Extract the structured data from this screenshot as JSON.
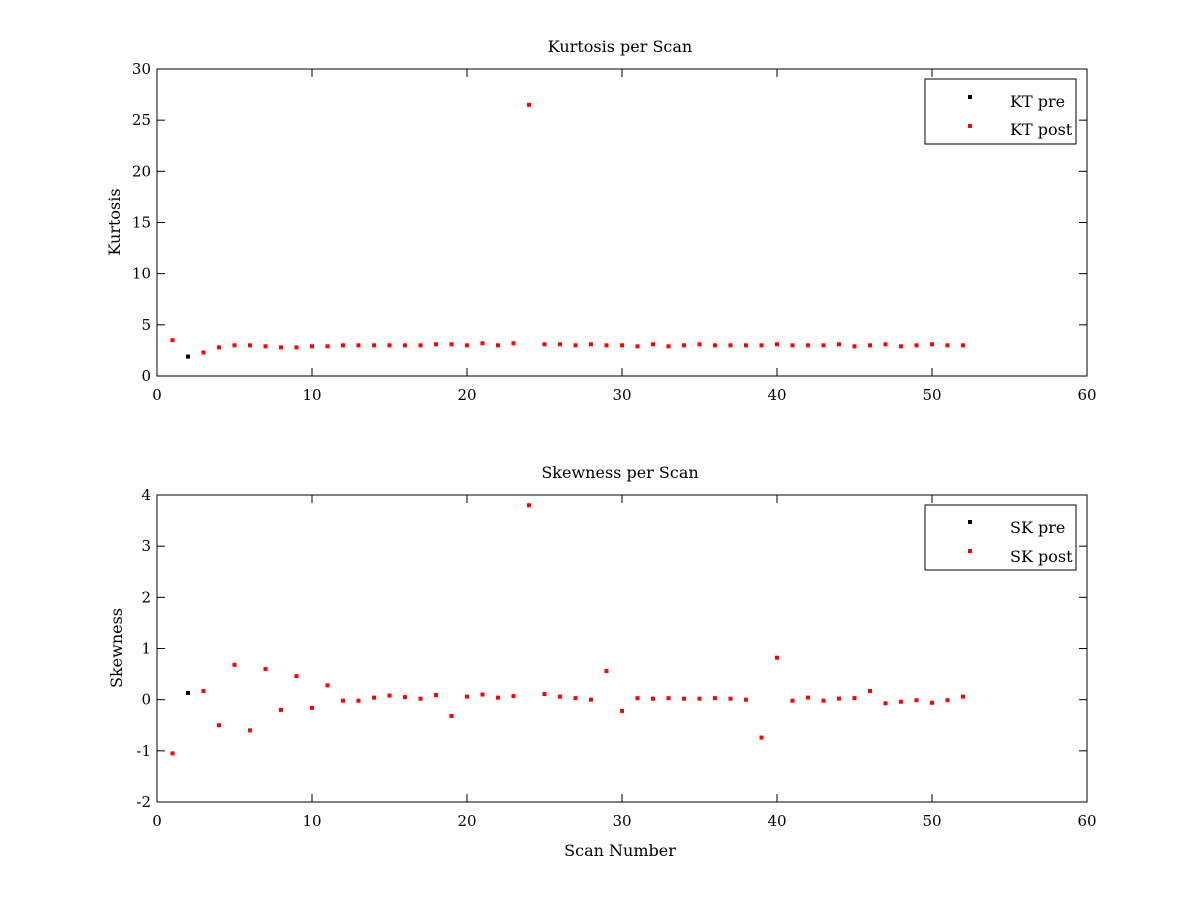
{
  "colors": {
    "pre": "#000000",
    "post": "#ff0000",
    "axis": "#000000",
    "background": "#ffffff"
  },
  "chart_data": [
    {
      "type": "scatter",
      "title": "Kurtosis per Scan",
      "xlabel": "",
      "ylabel": "Kurtosis",
      "xlim": [
        0,
        60
      ],
      "ylim": [
        0,
        30
      ],
      "xticks": [
        0,
        10,
        20,
        30,
        40,
        50,
        60
      ],
      "yticks": [
        0,
        5,
        10,
        15,
        20,
        25,
        30
      ],
      "legend_position": "top-right",
      "series": [
        {
          "name": "KT pre",
          "color": "#000000",
          "x": [
            2
          ],
          "y": [
            1.9
          ]
        },
        {
          "name": "KT post",
          "color": "#ff0000",
          "x": [
            1,
            3,
            4,
            5,
            6,
            7,
            8,
            9,
            10,
            11,
            12,
            13,
            14,
            15,
            16,
            17,
            18,
            19,
            20,
            21,
            22,
            23,
            24,
            25,
            26,
            27,
            28,
            29,
            30,
            31,
            32,
            33,
            34,
            35,
            36,
            37,
            38,
            39,
            40,
            41,
            42,
            43,
            44,
            45,
            46,
            47,
            48,
            49,
            50,
            51,
            52
          ],
          "y": [
            3.5,
            2.3,
            2.8,
            3.0,
            3.0,
            2.9,
            2.8,
            2.8,
            2.9,
            2.9,
            3.0,
            3.0,
            3.0,
            3.0,
            3.0,
            3.0,
            3.1,
            3.1,
            3.0,
            3.2,
            3.0,
            3.2,
            26.5,
            3.1,
            3.1,
            3.0,
            3.1,
            3.0,
            3.0,
            2.9,
            3.1,
            2.9,
            3.0,
            3.1,
            3.0,
            3.0,
            3.0,
            3.0,
            3.1,
            3.0,
            3.0,
            3.0,
            3.1,
            2.9,
            3.0,
            3.1,
            2.9,
            3.0,
            3.1,
            3.0,
            3.0
          ]
        }
      ]
    },
    {
      "type": "scatter",
      "title": "Skewness per Scan",
      "xlabel": "Scan Number",
      "ylabel": "Skewness",
      "xlim": [
        0,
        60
      ],
      "ylim": [
        -2,
        4
      ],
      "xticks": [
        0,
        10,
        20,
        30,
        40,
        50,
        60
      ],
      "yticks": [
        -2,
        -1,
        0,
        1,
        2,
        3,
        4
      ],
      "legend_position": "top-right",
      "series": [
        {
          "name": "SK pre",
          "color": "#000000",
          "x": [
            2
          ],
          "y": [
            0.13
          ]
        },
        {
          "name": "SK post",
          "color": "#ff0000",
          "x": [
            1,
            3,
            4,
            5,
            6,
            7,
            8,
            9,
            10,
            11,
            12,
            13,
            14,
            15,
            16,
            17,
            18,
            19,
            20,
            21,
            22,
            23,
            24,
            25,
            26,
            27,
            28,
            29,
            30,
            31,
            32,
            33,
            34,
            35,
            36,
            37,
            38,
            39,
            40,
            41,
            42,
            43,
            44,
            45,
            46,
            47,
            48,
            49,
            50,
            51,
            52
          ],
          "y": [
            -1.05,
            0.17,
            -0.5,
            0.68,
            -0.6,
            0.6,
            -0.2,
            0.46,
            -0.16,
            0.28,
            -0.02,
            -0.02,
            0.04,
            0.08,
            0.05,
            0.02,
            0.09,
            -0.32,
            0.06,
            0.1,
            0.04,
            0.07,
            3.8,
            0.11,
            0.06,
            0.03,
            0.0,
            0.56,
            -0.22,
            0.03,
            0.02,
            0.03,
            0.02,
            0.02,
            0.03,
            0.02,
            0.0,
            -0.74,
            0.82,
            -0.02,
            0.04,
            -0.02,
            0.02,
            0.03,
            0.17,
            -0.07,
            -0.04,
            -0.01,
            -0.06,
            -0.01,
            0.06
          ]
        }
      ]
    }
  ]
}
